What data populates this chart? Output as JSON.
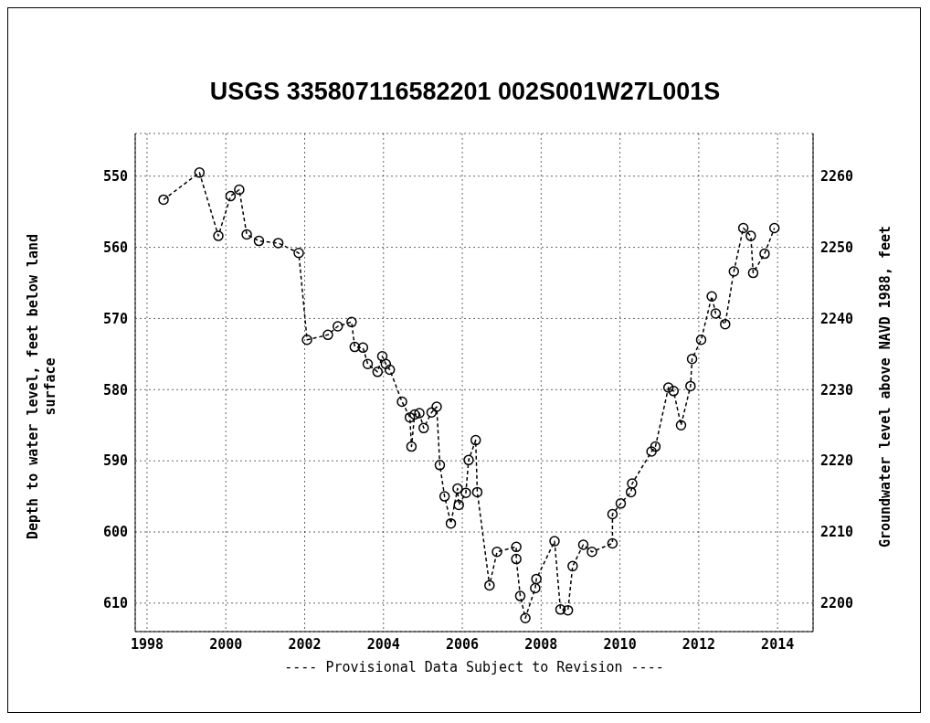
{
  "chart_data": {
    "type": "line",
    "title": "USGS 335807116582201 002S001W27L001S",
    "ylabel": "Depth to water level, feet below land surface",
    "y2label": "Groundwater level above NAVD 1988, feet",
    "annotations": [
      "---- Provisional Data Subject to Revision ----"
    ],
    "x": [
      1998.42,
      1999.33,
      1999.81,
      2000.12,
      2000.34,
      2000.53,
      2000.84,
      2001.33,
      2001.85,
      2002.06,
      2002.59,
      2002.84,
      2003.19,
      2003.27,
      2003.48,
      2003.6,
      2003.85,
      2003.97,
      2004.06,
      2004.16,
      2004.47,
      2004.67,
      2004.71,
      2004.79,
      2004.91,
      2005.02,
      2005.22,
      2005.35,
      2005.43,
      2005.55,
      2005.71,
      2005.88,
      2005.91,
      2006.09,
      2006.16,
      2006.34,
      2006.38,
      2006.69,
      2006.88,
      2007.37,
      2007.37,
      2007.47,
      2007.6,
      2007.85,
      2007.88,
      2008.34,
      2008.49,
      2008.68,
      2008.8,
      2009.07,
      2009.29,
      2009.81,
      2009.81,
      2010.02,
      2010.28,
      2010.31,
      2010.8,
      2010.9,
      2011.23,
      2011.36,
      2011.55,
      2011.79,
      2011.83,
      2012.06,
      2012.33,
      2012.43,
      2012.67,
      2012.89,
      2013.13,
      2013.32,
      2013.38,
      2013.67,
      2013.92
    ],
    "series": [
      {
        "color": "#000000",
        "values": [
          553.3,
          549.5,
          558.4,
          552.8,
          551.9,
          558.2,
          559.1,
          559.4,
          560.8,
          573.0,
          572.3,
          571.1,
          570.5,
          574.0,
          574.1,
          576.4,
          577.5,
          575.3,
          576.4,
          577.2,
          581.7,
          583.9,
          588.0,
          583.5,
          583.3,
          585.4,
          583.2,
          582.4,
          590.6,
          595.0,
          598.8,
          593.9,
          596.2,
          594.5,
          589.9,
          587.1,
          594.4,
          607.5,
          602.8,
          602.1,
          603.8,
          609.0,
          612.1,
          607.9,
          606.6,
          601.3,
          610.9,
          611.0,
          604.8,
          601.8,
          602.8,
          601.6,
          597.5,
          596.0,
          594.4,
          593.2,
          588.7,
          588.0,
          579.7,
          580.2,
          585.0,
          579.5,
          575.7,
          573.0,
          566.9,
          569.3,
          570.8,
          563.4,
          557.3,
          558.4,
          563.6,
          560.9,
          557.3
        ]
      }
    ],
    "xlim": [
      1997.7,
      2014.9
    ],
    "xticks": [
      1998,
      2000,
      2002,
      2004,
      2006,
      2008,
      2010,
      2012,
      2014
    ],
    "ylim": [
      614,
      544
    ],
    "yticks": [
      550,
      560,
      570,
      580,
      590,
      600,
      610
    ],
    "y2lim": [
      2196,
      2266
    ],
    "y2ticks": [
      2200,
      2210,
      2220,
      2230,
      2240,
      2250,
      2260
    ],
    "grid": true,
    "marker": "circle",
    "line_style": "dashed"
  }
}
